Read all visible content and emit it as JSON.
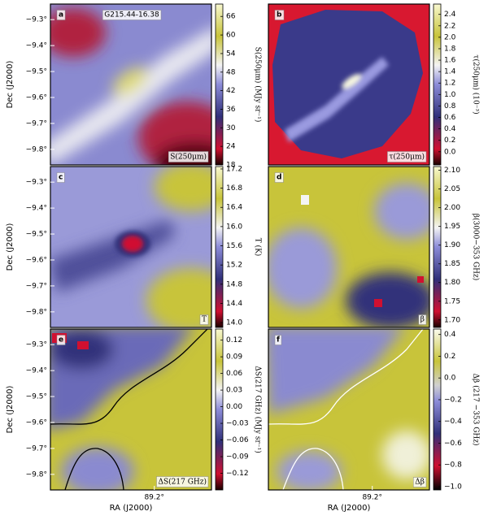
{
  "chart_data": [
    {
      "type": "image",
      "panel_label": "a",
      "annotations": [
        "G215.44-16.38",
        "S(250μm)"
      ],
      "ylabel": "Dec (J2000)",
      "ylim": [
        -9.86,
        -9.24
      ],
      "yticks": [
        {
          "value": -9.3,
          "label": "−9.3°"
        },
        {
          "value": -9.4,
          "label": "−9.4°"
        },
        {
          "value": -9.5,
          "label": "−9.5°"
        },
        {
          "value": -9.6,
          "label": "−9.6°"
        },
        {
          "value": -9.7,
          "label": "−9.7°"
        },
        {
          "value": -9.8,
          "label": "−9.8°"
        }
      ],
      "colorbar": {
        "label": "S(250μm) (MJy sr⁻¹)",
        "lim": [
          18,
          70
        ],
        "ticks": [
          18,
          24,
          30,
          36,
          42,
          48,
          54,
          60,
          66
        ]
      }
    },
    {
      "type": "image",
      "panel_label": "b",
      "annotations": [
        "τ(250μm)"
      ],
      "colorbar": {
        "label": "τ(250μm) (10⁻³)",
        "lim": [
          -0.23,
          2.58
        ],
        "ticks": [
          {
            "value": 0,
            "label": "0.0"
          },
          0.2,
          0.4,
          0.6,
          0.8,
          {
            "value": 1,
            "label": "1.0"
          },
          1.2,
          1.4,
          1.6,
          1.8,
          {
            "value": 2,
            "label": "2.0"
          },
          2.2,
          2.4
        ]
      }
    },
    {
      "type": "image",
      "panel_label": "c",
      "annotations": [
        "T"
      ],
      "ylabel": "Dec (J2000)",
      "ylim": [
        -9.86,
        -9.24
      ],
      "yticks": [
        {
          "value": -9.3,
          "label": "−9.3°"
        },
        {
          "value": -9.4,
          "label": "−9.4°"
        },
        {
          "value": -9.5,
          "label": "−9.5°"
        },
        {
          "value": -9.6,
          "label": "−9.6°"
        },
        {
          "value": -9.7,
          "label": "−9.7°"
        },
        {
          "value": -9.8,
          "label": "−9.8°"
        }
      ],
      "colorbar": {
        "label": "T (K)",
        "lim": [
          13.9,
          17.25
        ],
        "ticks": [
          {
            "value": 14,
            "label": "14.0"
          },
          14.4,
          14.8,
          15.2,
          15.6,
          {
            "value": 16,
            "label": "16.0"
          },
          16.4,
          16.8,
          17.2
        ]
      }
    },
    {
      "type": "image",
      "panel_label": "d",
      "annotations": [
        "β"
      ],
      "colorbar": {
        "label": "β(3000−353 GHz)",
        "lim": [
          1.68,
          2.11
        ],
        "ticks": [
          {
            "value": 1.7,
            "label": "1.70"
          },
          1.75,
          {
            "value": 1.8,
            "label": "1.80"
          },
          1.85,
          {
            "value": 1.9,
            "label": "1.90"
          },
          1.95,
          {
            "value": 2,
            "label": "2.00"
          },
          2.05,
          {
            "value": 2.1,
            "label": "2.10"
          }
        ]
      }
    },
    {
      "type": "image",
      "panel_label": "e",
      "annotations": [
        "ΔS(217 GHz)"
      ],
      "ylabel": "Dec (J2000)",
      "ylim": [
        -9.86,
        -9.24
      ],
      "yticks": [
        {
          "value": -9.3,
          "label": "−9.3°"
        },
        {
          "value": -9.4,
          "label": "−9.4°"
        },
        {
          "value": -9.5,
          "label": "−9.5°"
        },
        {
          "value": -9.6,
          "label": "−9.6°"
        },
        {
          "value": -9.7,
          "label": "−9.7°"
        },
        {
          "value": -9.8,
          "label": "−9.8°"
        }
      ],
      "xlabel": "RA (J2000)",
      "xlim": [
        89.6,
        88.98
      ],
      "xticks": [
        {
          "value": 89.2,
          "label": "89.2°"
        }
      ],
      "colorbar": {
        "label": "ΔS(217 GHz) (MJy sr⁻¹)",
        "lim": [
          -0.15,
          0.14
        ],
        "ticks": [
          {
            "value": -0.12,
            "label": "−0.12"
          },
          {
            "value": -0.09,
            "label": "−0.09"
          },
          {
            "value": -0.06,
            "label": "−0.06"
          },
          {
            "value": -0.03,
            "label": "−0.03"
          },
          {
            "value": 0,
            "label": "0.00"
          },
          0.03,
          0.06,
          0.09,
          0.12
        ]
      }
    },
    {
      "type": "image",
      "panel_label": "f",
      "annotations": [
        "Δβ"
      ],
      "xlabel": "RA (J2000)",
      "xlim": [
        89.6,
        88.98
      ],
      "xticks": [
        {
          "value": 89.2,
          "label": "89.2°"
        }
      ],
      "colorbar": {
        "label": "Δβ (217 −353 GHz)",
        "lim": [
          -1.03,
          0.45
        ],
        "ticks": [
          {
            "value": -1,
            "label": "−1.0"
          },
          {
            "value": -0.8,
            "label": "−0.8"
          },
          {
            "value": -0.6,
            "label": "−0.6"
          },
          {
            "value": -0.4,
            "label": "−0.4"
          },
          {
            "value": -0.2,
            "label": "−0.2"
          },
          {
            "value": 0,
            "label": "0.0"
          },
          0.2,
          0.4
        ]
      }
    }
  ]
}
